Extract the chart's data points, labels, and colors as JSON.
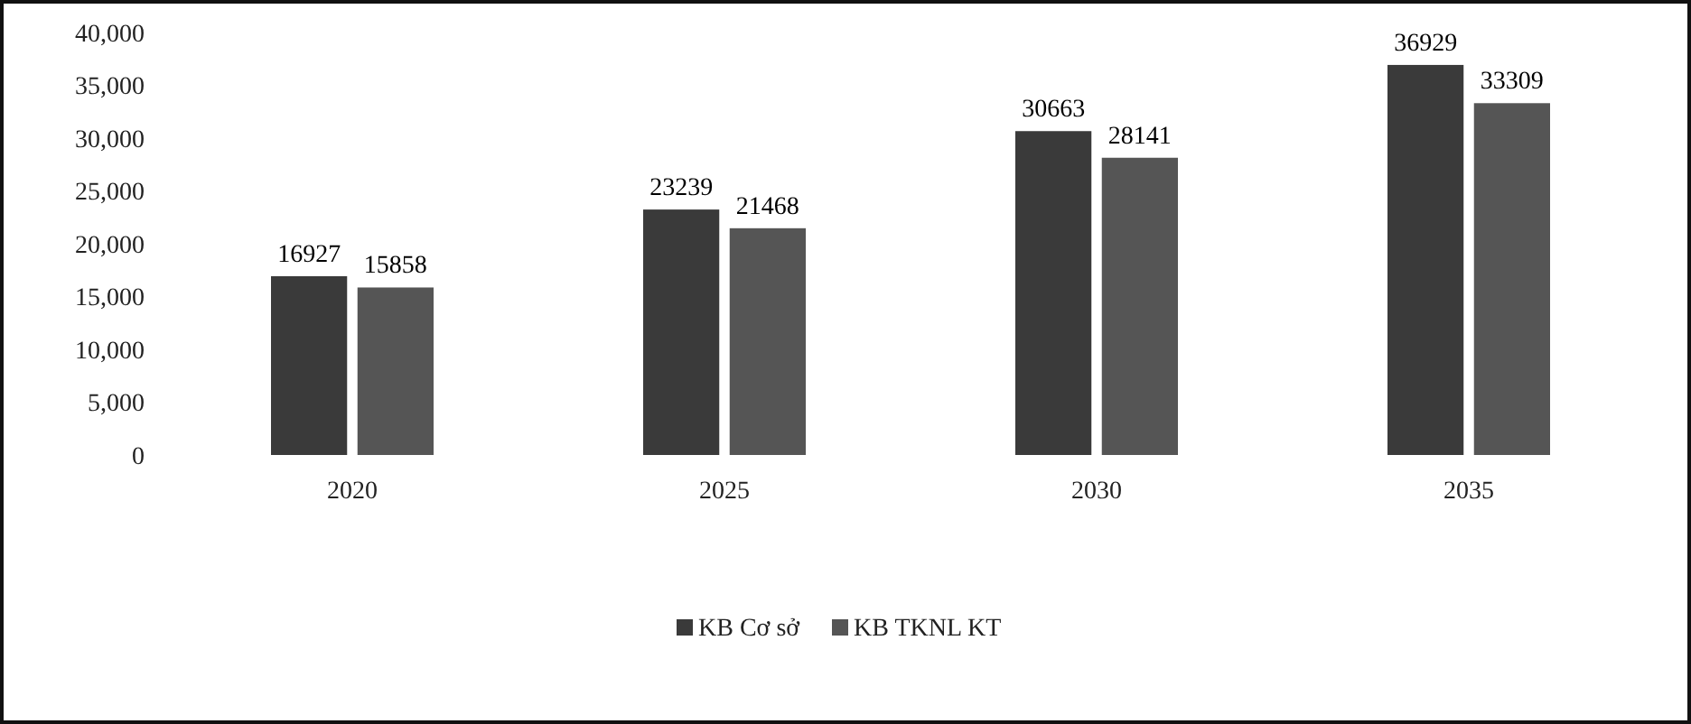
{
  "chart_data": {
    "type": "bar",
    "categories": [
      "2020",
      "2025",
      "2030",
      "2035"
    ],
    "series": [
      {
        "name": "KB Cơ sở",
        "color": "#3a3a3a",
        "values": [
          16927,
          23239,
          30663,
          36929
        ]
      },
      {
        "name": "KB TKNL KT",
        "color": "#555555",
        "values": [
          15858,
          21468,
          28141,
          33309
        ]
      }
    ],
    "ylim": [
      0,
      40000
    ],
    "yticks": [
      {
        "value": 0,
        "label": "0"
      },
      {
        "value": 5000,
        "label": "5,000"
      },
      {
        "value": 10000,
        "label": "10,000"
      },
      {
        "value": 15000,
        "label": "15,000"
      },
      {
        "value": 20000,
        "label": "20,000"
      },
      {
        "value": 25000,
        "label": "25,000"
      },
      {
        "value": 30000,
        "label": "30,000"
      },
      {
        "value": 35000,
        "label": "35,000"
      },
      {
        "value": 40000,
        "label": "40,000"
      }
    ],
    "data_labels": true,
    "legend": "bottom",
    "grid": false
  }
}
